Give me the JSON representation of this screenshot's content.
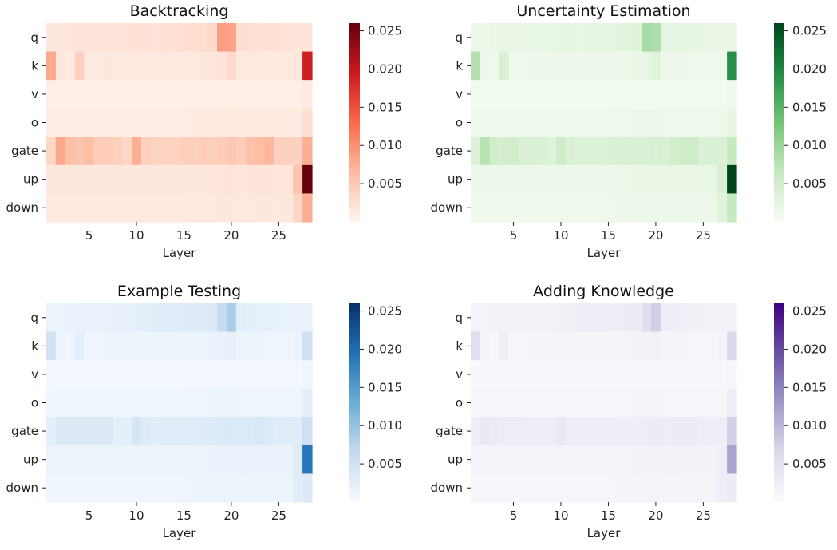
{
  "chart_data": [
    {
      "type": "heatmap",
      "title": "Backtracking",
      "xlabel": "Layer",
      "ylabel": "",
      "rows": [
        "q",
        "k",
        "v",
        "o",
        "gate",
        "up",
        "down"
      ],
      "x_range": [
        1,
        28
      ],
      "x_ticks": [
        "5",
        "10",
        "15",
        "20",
        "25"
      ],
      "colorbar": {
        "min": 0.0,
        "max": 0.026,
        "ticks": [
          "0.005",
          "0.010",
          "0.015",
          "0.020",
          "0.025"
        ],
        "colors": [
          "#fff5f0",
          "#fcbba1",
          "#fb6a4a",
          "#cb181d",
          "#67000d"
        ]
      },
      "values": [
        [
          0.0015,
          0.0015,
          0.0017,
          0.0018,
          0.0018,
          0.0019,
          0.0018,
          0.002,
          0.002,
          0.0022,
          0.0021,
          0.002,
          0.0022,
          0.0021,
          0.0025,
          0.0026,
          0.0028,
          0.003,
          0.009,
          0.0085,
          0.0025,
          0.0023,
          0.0021,
          0.0022,
          0.0021,
          0.0019,
          0.0018,
          0.0019
        ],
        [
          0.008,
          0.0015,
          0.0012,
          0.004,
          0.0012,
          0.0012,
          0.0015,
          0.0014,
          0.0013,
          0.0013,
          0.0014,
          0.0014,
          0.0014,
          0.0014,
          0.0014,
          0.0014,
          0.0015,
          0.0017,
          0.0019,
          0.003,
          0.0014,
          0.0013,
          0.0013,
          0.0012,
          0.0012,
          0.0012,
          0.0015,
          0.019
        ],
        [
          0.0008,
          0.0008,
          0.0008,
          0.0008,
          0.0008,
          0.0008,
          0.0008,
          0.0008,
          0.0008,
          0.0008,
          0.0008,
          0.0008,
          0.0008,
          0.0008,
          0.0008,
          0.0008,
          0.0008,
          0.0008,
          0.0008,
          0.0008,
          0.0008,
          0.0008,
          0.0008,
          0.0008,
          0.0008,
          0.0008,
          0.0008,
          0.0012
        ],
        [
          0.001,
          0.001,
          0.001,
          0.001,
          0.001,
          0.001,
          0.001,
          0.001,
          0.001,
          0.001,
          0.001,
          0.001,
          0.001,
          0.001,
          0.001,
          0.0012,
          0.0012,
          0.0013,
          0.0013,
          0.0014,
          0.0012,
          0.0012,
          0.0012,
          0.0012,
          0.0012,
          0.0012,
          0.0012,
          0.0025
        ],
        [
          0.0035,
          0.008,
          0.006,
          0.0055,
          0.0062,
          0.0045,
          0.0045,
          0.0042,
          0.0035,
          0.0075,
          0.0042,
          0.0038,
          0.0038,
          0.0038,
          0.0042,
          0.0042,
          0.0045,
          0.0042,
          0.0045,
          0.005,
          0.0045,
          0.0058,
          0.0062,
          0.0068,
          0.004,
          0.004,
          0.004,
          0.0075
        ],
        [
          0.0015,
          0.0015,
          0.0015,
          0.0015,
          0.0015,
          0.0015,
          0.0015,
          0.0015,
          0.0015,
          0.0015,
          0.0015,
          0.0015,
          0.0015,
          0.0015,
          0.0015,
          0.0016,
          0.0016,
          0.0017,
          0.0017,
          0.0018,
          0.0017,
          0.0018,
          0.0018,
          0.0018,
          0.0017,
          0.0017,
          0.0055,
          0.026
        ],
        [
          0.0012,
          0.0012,
          0.0012,
          0.0012,
          0.0012,
          0.0012,
          0.0012,
          0.0012,
          0.0012,
          0.0012,
          0.0012,
          0.0012,
          0.0012,
          0.0012,
          0.0012,
          0.0014,
          0.0014,
          0.0014,
          0.0015,
          0.0015,
          0.0014,
          0.0014,
          0.0015,
          0.0015,
          0.0014,
          0.0016,
          0.0035,
          0.0075
        ]
      ]
    },
    {
      "type": "heatmap",
      "title": "Uncertainty Estimation",
      "xlabel": "Layer",
      "ylabel": "",
      "rows": [
        "q",
        "k",
        "v",
        "o",
        "gate",
        "up",
        "down"
      ],
      "x_range": [
        1,
        28
      ],
      "x_ticks": [
        "5",
        "10",
        "15",
        "20",
        "25"
      ],
      "colorbar": {
        "min": 0.0,
        "max": 0.026,
        "ticks": [
          "0.005",
          "0.010",
          "0.015",
          "0.020",
          "0.025"
        ],
        "colors": [
          "#f7fcf5",
          "#c7e9c0",
          "#74c476",
          "#238b45",
          "#00441b"
        ]
      },
      "values": [
        [
          0.0015,
          0.0015,
          0.0017,
          0.0018,
          0.0018,
          0.0019,
          0.0018,
          0.002,
          0.002,
          0.0022,
          0.0021,
          0.002,
          0.0022,
          0.0021,
          0.0025,
          0.0026,
          0.0028,
          0.003,
          0.009,
          0.0085,
          0.0025,
          0.0023,
          0.0021,
          0.0022,
          0.0021,
          0.0019,
          0.0018,
          0.0019
        ],
        [
          0.008,
          0.0015,
          0.0012,
          0.004,
          0.0012,
          0.0012,
          0.0015,
          0.0014,
          0.0013,
          0.0013,
          0.0014,
          0.0014,
          0.0014,
          0.0014,
          0.0014,
          0.0014,
          0.0015,
          0.0017,
          0.0019,
          0.003,
          0.0014,
          0.0013,
          0.0013,
          0.0012,
          0.0012,
          0.0012,
          0.0015,
          0.019
        ],
        [
          0.0008,
          0.0008,
          0.0008,
          0.0008,
          0.0008,
          0.0008,
          0.0008,
          0.0008,
          0.0008,
          0.0008,
          0.0008,
          0.0008,
          0.0008,
          0.0008,
          0.0008,
          0.0008,
          0.0008,
          0.0008,
          0.0008,
          0.0008,
          0.0008,
          0.0008,
          0.0008,
          0.0008,
          0.0008,
          0.0008,
          0.0008,
          0.0012
        ],
        [
          0.001,
          0.001,
          0.001,
          0.001,
          0.001,
          0.001,
          0.001,
          0.001,
          0.001,
          0.001,
          0.001,
          0.001,
          0.001,
          0.001,
          0.001,
          0.0012,
          0.0012,
          0.0013,
          0.0013,
          0.0014,
          0.0012,
          0.0012,
          0.0012,
          0.0012,
          0.0012,
          0.0012,
          0.0012,
          0.0025
        ],
        [
          0.0035,
          0.0075,
          0.005,
          0.0048,
          0.005,
          0.004,
          0.004,
          0.0038,
          0.0032,
          0.0055,
          0.0038,
          0.0035,
          0.0035,
          0.0035,
          0.0038,
          0.0038,
          0.004,
          0.0038,
          0.0042,
          0.0045,
          0.0042,
          0.0052,
          0.0055,
          0.0055,
          0.0038,
          0.0038,
          0.0038,
          0.0065
        ],
        [
          0.0015,
          0.0015,
          0.0015,
          0.0015,
          0.0015,
          0.0015,
          0.0015,
          0.0015,
          0.0015,
          0.0015,
          0.0015,
          0.0015,
          0.0015,
          0.0015,
          0.0015,
          0.0016,
          0.0016,
          0.0017,
          0.0017,
          0.0018,
          0.0017,
          0.0018,
          0.0018,
          0.0018,
          0.0017,
          0.0017,
          0.004,
          0.026
        ],
        [
          0.0012,
          0.0012,
          0.0012,
          0.0012,
          0.0012,
          0.0012,
          0.0012,
          0.0012,
          0.0012,
          0.0012,
          0.0012,
          0.0012,
          0.0012,
          0.0012,
          0.0012,
          0.0014,
          0.0014,
          0.0014,
          0.0015,
          0.0015,
          0.0014,
          0.0014,
          0.0015,
          0.0015,
          0.0014,
          0.0016,
          0.003,
          0.0065
        ]
      ]
    },
    {
      "type": "heatmap",
      "title": "Example Testing",
      "xlabel": "Layer",
      "ylabel": "",
      "rows": [
        "q",
        "k",
        "v",
        "o",
        "gate",
        "up",
        "down"
      ],
      "x_range": [
        1,
        28
      ],
      "x_ticks": [
        "5",
        "10",
        "15",
        "20",
        "25"
      ],
      "colorbar": {
        "min": 0.0,
        "max": 0.026,
        "ticks": [
          "0.005",
          "0.010",
          "0.015",
          "0.020",
          "0.025"
        ],
        "colors": [
          "#f7fbff",
          "#c6dbef",
          "#6baed6",
          "#2171b5",
          "#08306b"
        ]
      },
      "values": [
        [
          0.0015,
          0.0015,
          0.0017,
          0.0018,
          0.0018,
          0.0019,
          0.0018,
          0.002,
          0.002,
          0.0024,
          0.0026,
          0.0028,
          0.003,
          0.003,
          0.0032,
          0.0032,
          0.0033,
          0.0035,
          0.0065,
          0.0085,
          0.0028,
          0.0025,
          0.0023,
          0.0022,
          0.0021,
          0.0019,
          0.0018,
          0.0019
        ],
        [
          0.0048,
          0.0015,
          0.0012,
          0.0025,
          0.0012,
          0.0012,
          0.0015,
          0.0014,
          0.0013,
          0.0013,
          0.0014,
          0.0014,
          0.0014,
          0.0014,
          0.0014,
          0.0014,
          0.0015,
          0.0017,
          0.0019,
          0.002,
          0.0014,
          0.0013,
          0.0013,
          0.0012,
          0.0012,
          0.0012,
          0.0015,
          0.0055
        ],
        [
          0.0008,
          0.0008,
          0.0008,
          0.0008,
          0.0008,
          0.0008,
          0.0008,
          0.0008,
          0.0008,
          0.0008,
          0.0008,
          0.0008,
          0.0008,
          0.0008,
          0.0008,
          0.0008,
          0.0008,
          0.0008,
          0.0008,
          0.0008,
          0.0008,
          0.0008,
          0.0008,
          0.0008,
          0.0008,
          0.0008,
          0.0008,
          0.0012
        ],
        [
          0.001,
          0.001,
          0.001,
          0.001,
          0.001,
          0.001,
          0.001,
          0.001,
          0.001,
          0.001,
          0.001,
          0.001,
          0.001,
          0.001,
          0.001,
          0.0012,
          0.0012,
          0.0013,
          0.0013,
          0.0016,
          0.0012,
          0.0012,
          0.0012,
          0.0012,
          0.0012,
          0.0012,
          0.0012,
          0.0025
        ],
        [
          0.0025,
          0.0035,
          0.0035,
          0.0035,
          0.0035,
          0.0035,
          0.0035,
          0.0025,
          0.0025,
          0.0042,
          0.0032,
          0.0028,
          0.003,
          0.003,
          0.003,
          0.003,
          0.0032,
          0.0032,
          0.0034,
          0.0036,
          0.0034,
          0.0036,
          0.0038,
          0.0034,
          0.003,
          0.003,
          0.003,
          0.0055
        ],
        [
          0.0015,
          0.0015,
          0.0015,
          0.0015,
          0.0015,
          0.0015,
          0.0015,
          0.0015,
          0.0015,
          0.0015,
          0.0015,
          0.0015,
          0.0015,
          0.0015,
          0.0015,
          0.0016,
          0.0016,
          0.0017,
          0.0017,
          0.0018,
          0.0017,
          0.0018,
          0.0018,
          0.0018,
          0.0017,
          0.0017,
          0.003,
          0.019
        ],
        [
          0.0012,
          0.0012,
          0.0012,
          0.0012,
          0.0012,
          0.0012,
          0.0012,
          0.0012,
          0.0012,
          0.0012,
          0.0012,
          0.0012,
          0.0012,
          0.0012,
          0.0012,
          0.0014,
          0.0014,
          0.0014,
          0.0015,
          0.0015,
          0.0014,
          0.0014,
          0.0015,
          0.0015,
          0.0014,
          0.0016,
          0.0028,
          0.0035
        ]
      ]
    },
    {
      "type": "heatmap",
      "title": "Adding Knowledge",
      "xlabel": "Layer",
      "ylabel": "",
      "rows": [
        "q",
        "k",
        "v",
        "o",
        "gate",
        "up",
        "down"
      ],
      "x_range": [
        1,
        28
      ],
      "x_ticks": [
        "5",
        "10",
        "15",
        "20",
        "25"
      ],
      "colorbar": {
        "min": 0.0,
        "max": 0.026,
        "ticks": [
          "0.005",
          "0.010",
          "0.015",
          "0.020",
          "0.025"
        ],
        "colors": [
          "#fcfbfd",
          "#dadaeb",
          "#9e9ac8",
          "#6a51a3",
          "#3f007d"
        ]
      },
      "values": [
        [
          0.0015,
          0.0015,
          0.0017,
          0.0018,
          0.0018,
          0.0019,
          0.0018,
          0.002,
          0.002,
          0.0022,
          0.0024,
          0.0025,
          0.0026,
          0.0026,
          0.0028,
          0.0028,
          0.003,
          0.0032,
          0.0055,
          0.0075,
          0.0028,
          0.0025,
          0.0023,
          0.0022,
          0.0021,
          0.0019,
          0.0018,
          0.0019
        ],
        [
          0.0055,
          0.0015,
          0.0012,
          0.0025,
          0.0012,
          0.0012,
          0.0015,
          0.0014,
          0.0013,
          0.0013,
          0.0014,
          0.0014,
          0.0014,
          0.0014,
          0.0014,
          0.0014,
          0.0015,
          0.0017,
          0.0019,
          0.002,
          0.0014,
          0.0013,
          0.0013,
          0.0012,
          0.0012,
          0.0012,
          0.0015,
          0.0065
        ],
        [
          0.0008,
          0.0008,
          0.0008,
          0.0008,
          0.0008,
          0.0008,
          0.0008,
          0.0008,
          0.0008,
          0.0008,
          0.0008,
          0.0008,
          0.0008,
          0.0008,
          0.0008,
          0.0008,
          0.0008,
          0.0008,
          0.0008,
          0.0008,
          0.0008,
          0.0008,
          0.0008,
          0.0008,
          0.0008,
          0.0008,
          0.0008,
          0.0012
        ],
        [
          0.001,
          0.001,
          0.001,
          0.001,
          0.001,
          0.001,
          0.001,
          0.001,
          0.001,
          0.001,
          0.001,
          0.001,
          0.001,
          0.001,
          0.001,
          0.0012,
          0.0012,
          0.0013,
          0.0013,
          0.0014,
          0.0012,
          0.0012,
          0.0012,
          0.0012,
          0.0012,
          0.0012,
          0.0012,
          0.0025
        ],
        [
          0.0025,
          0.0035,
          0.0032,
          0.0028,
          0.0028,
          0.0028,
          0.0026,
          0.0025,
          0.0025,
          0.0035,
          0.0026,
          0.0025,
          0.0025,
          0.0025,
          0.0025,
          0.0025,
          0.0026,
          0.0026,
          0.0028,
          0.003,
          0.0028,
          0.003,
          0.003,
          0.003,
          0.0026,
          0.0026,
          0.0026,
          0.0075
        ],
        [
          0.0015,
          0.0015,
          0.0015,
          0.0015,
          0.0015,
          0.0015,
          0.0015,
          0.0015,
          0.0015,
          0.0015,
          0.0015,
          0.0015,
          0.0015,
          0.0015,
          0.0015,
          0.0016,
          0.0016,
          0.0017,
          0.0017,
          0.0018,
          0.0017,
          0.0018,
          0.0018,
          0.0018,
          0.0017,
          0.0017,
          0.0025,
          0.012
        ],
        [
          0.0012,
          0.0012,
          0.0012,
          0.0012,
          0.0012,
          0.0012,
          0.0012,
          0.0012,
          0.0012,
          0.0012,
          0.0012,
          0.0012,
          0.0012,
          0.0012,
          0.0012,
          0.0014,
          0.0014,
          0.0014,
          0.0015,
          0.0015,
          0.0014,
          0.0014,
          0.0015,
          0.0015,
          0.0014,
          0.0016,
          0.0025,
          0.003
        ]
      ]
    }
  ]
}
